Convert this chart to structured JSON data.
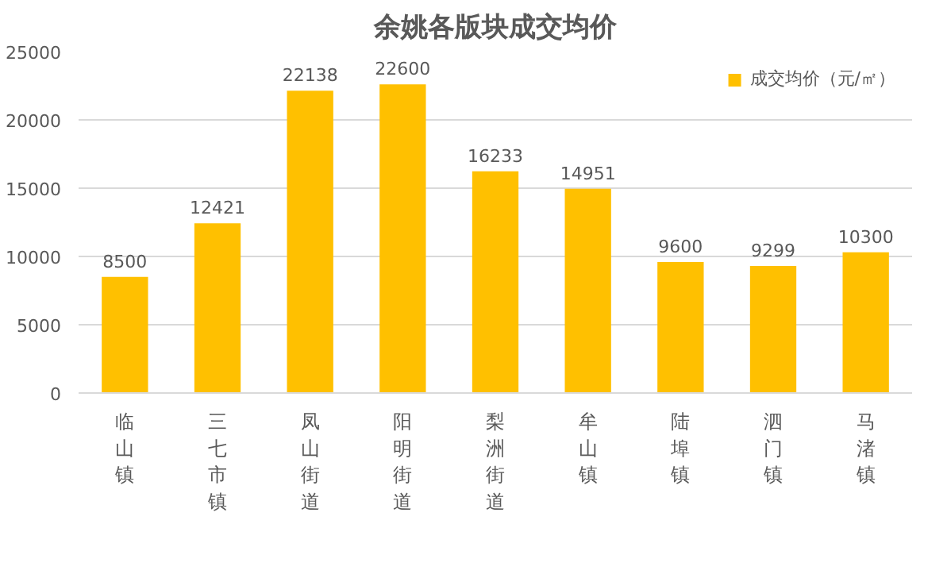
{
  "chart_data": {
    "type": "bar",
    "title": "余姚各版块成交均价",
    "categories": [
      "临山镇",
      "三七市镇",
      "凤山街道",
      "阳明街道",
      "梨洲街道",
      "牟山镇",
      "陆埠镇",
      "泗门镇",
      "马渚镇"
    ],
    "series": [
      {
        "name": "成交均价（元/㎡）",
        "color": "#ffc000",
        "values": [
          8500,
          12421,
          22138,
          22600,
          16233,
          14951,
          9600,
          9299,
          10300
        ]
      }
    ],
    "ylim": [
      0,
      25000
    ],
    "yticks": [
      0,
      5000,
      10000,
      15000,
      20000,
      25000
    ],
    "grid": "y",
    "legend": "top",
    "data_labels": true
  }
}
